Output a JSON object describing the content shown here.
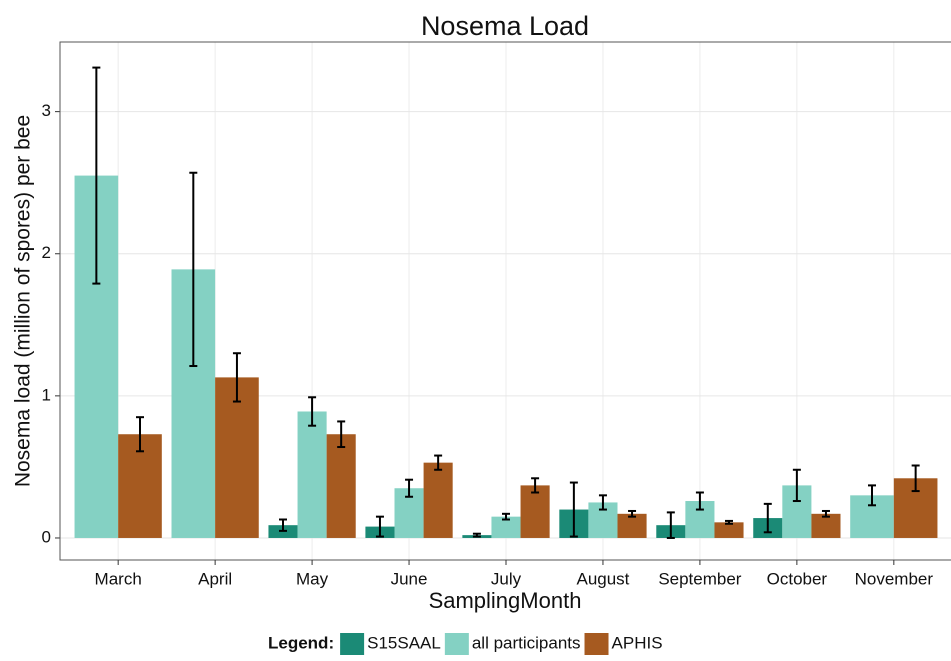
{
  "chart_data": {
    "type": "bar",
    "title": "Nosema Load",
    "x_label": "SamplingMonth",
    "y_label": "Nosema load (million of spores) per bee",
    "categories": [
      "March",
      "April",
      "May",
      "June",
      "July",
      "August",
      "September",
      "October",
      "November"
    ],
    "series": [
      {
        "name": "S15SAAL",
        "color": "#1b8a76",
        "values": [
          null,
          null,
          0.09,
          0.08,
          0.02,
          0.2,
          0.09,
          0.14,
          null
        ],
        "errors": [
          null,
          null,
          0.04,
          0.07,
          0.01,
          0.19,
          0.09,
          0.1,
          null
        ]
      },
      {
        "name": "all participants",
        "color": "#84d1c3",
        "values": [
          2.55,
          1.89,
          0.89,
          0.35,
          0.15,
          0.25,
          0.26,
          0.37,
          0.3
        ],
        "errors": [
          0.76,
          0.68,
          0.1,
          0.06,
          0.02,
          0.05,
          0.06,
          0.11,
          0.07
        ]
      },
      {
        "name": "APHIS",
        "color": "#a65a20",
        "values": [
          0.73,
          1.13,
          0.73,
          0.53,
          0.37,
          0.17,
          0.11,
          0.17,
          0.42
        ],
        "errors": [
          0.12,
          0.17,
          0.09,
          0.05,
          0.05,
          0.02,
          0.01,
          0.02,
          0.09
        ]
      }
    ],
    "ylim": [
      -0.155,
      3.49
    ],
    "yticks": [
      0,
      1,
      2,
      3
    ],
    "grid": true,
    "legend_title": "Legend:",
    "legend_position": "bottom"
  }
}
